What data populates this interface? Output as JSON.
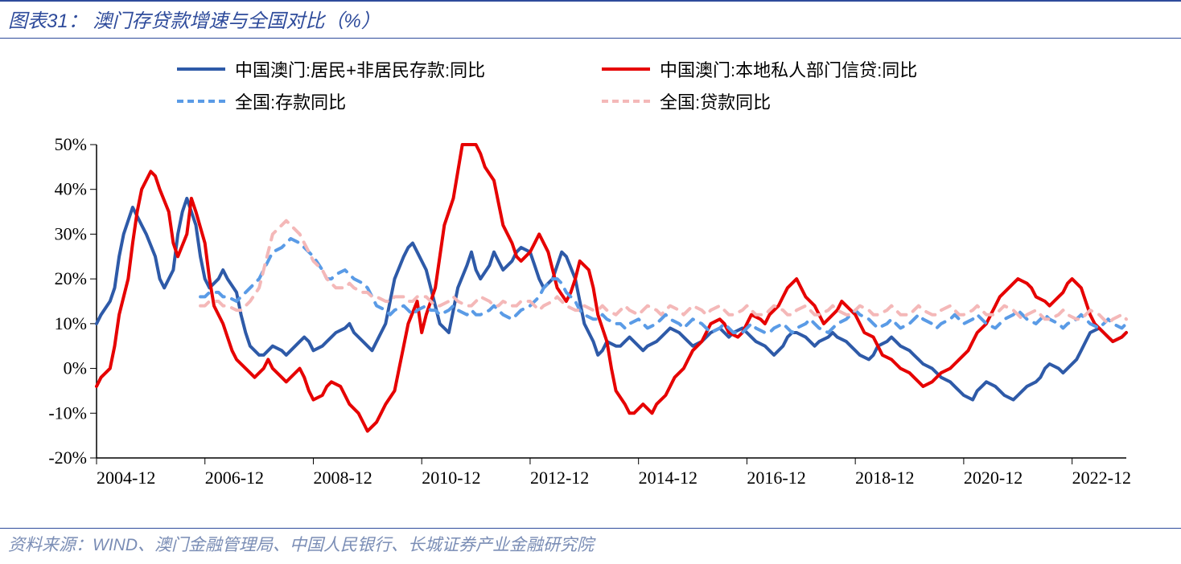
{
  "title": "图表31：  澳门存贷款增速与全国对比（%）",
  "source": "资料来源：WIND、澳门金融管理局、中国人民银行、长城证券产业金融研究院",
  "chart": {
    "type": "line",
    "background_color": "#ffffff",
    "title_color": "#2e4b9b",
    "source_color": "#7a8db5",
    "axis_color": "#000000",
    "ylim": [
      -20,
      50
    ],
    "ytick_step": 10,
    "ytick_format_suffix": "%",
    "x_start_year": 2004,
    "x_start_month": 12,
    "x_end_year": 2023,
    "x_end_month": 12,
    "x_major_step_years": 2,
    "x_tick_labels": [
      "2004-12",
      "2006-12",
      "2008-12",
      "2010-12",
      "2012-12",
      "2014-12",
      "2016-12",
      "2018-12",
      "2020-12",
      "2022-12"
    ],
    "axis_font_size": 22,
    "legend_font_size": 22,
    "line_width_solid": 4,
    "line_width_dashed": 4,
    "dash_pattern": "12 10",
    "series": [
      {
        "name": "中国澳门:居民+非居民存款:同比",
        "color": "#2e5aa8",
        "style": "solid",
        "data": [
          10,
          12,
          15,
          18,
          25,
          30,
          36,
          34,
          32,
          30,
          25,
          20,
          18,
          22,
          30,
          35,
          38,
          32,
          25,
          20,
          18,
          20,
          22,
          20,
          17,
          12,
          8,
          5,
          3,
          3,
          4,
          5,
          4,
          3,
          4,
          6,
          7,
          6,
          4,
          5,
          6,
          7,
          8,
          9,
          10,
          8,
          6,
          5,
          4,
          6,
          10,
          15,
          20,
          25,
          27,
          28,
          26,
          22,
          18,
          14,
          10,
          8,
          13,
          18,
          23,
          26,
          22,
          20,
          23,
          26,
          24,
          22,
          24,
          26,
          27,
          26,
          23,
          20,
          18,
          20,
          23,
          26,
          25,
          20,
          15,
          10,
          6,
          3,
          4,
          6,
          5,
          5,
          6,
          7,
          5,
          4,
          5,
          6,
          7,
          8,
          9,
          8,
          7,
          6,
          5,
          6,
          7,
          8,
          9,
          8,
          7,
          8,
          9,
          8,
          7,
          6,
          5,
          4,
          3,
          5,
          7,
          8,
          8,
          7,
          6,
          5,
          6,
          7,
          8,
          7,
          6,
          5,
          4,
          3,
          2,
          3,
          5,
          6,
          7,
          6,
          5,
          4,
          3,
          2,
          1,
          0,
          -1,
          -2,
          -3,
          -4,
          -5,
          -6,
          -7,
          -5,
          -4,
          -3,
          -4,
          -5,
          -6,
          -7,
          -6,
          -5,
          -4,
          -3,
          -2,
          0,
          1,
          0,
          -1,
          0,
          2,
          4,
          6,
          8,
          9,
          8,
          7,
          6,
          7,
          8
        ]
      },
      {
        "name": "中国澳门:本地私人部门信贷:同比",
        "color": "#e60000",
        "style": "solid",
        "data": [
          -4,
          -2,
          0,
          5,
          12,
          20,
          28,
          35,
          40,
          44,
          43,
          40,
          35,
          28,
          25,
          30,
          38,
          35,
          28,
          20,
          14,
          10,
          7,
          4,
          2,
          0,
          -1,
          -2,
          0,
          2,
          0,
          -2,
          -3,
          -2,
          0,
          -2,
          -5,
          -7,
          -6,
          -4,
          -3,
          -4,
          -6,
          -8,
          -10,
          -12,
          -14,
          -12,
          -10,
          -8,
          -5,
          0,
          5,
          10,
          15,
          8,
          12,
          18,
          25,
          32,
          38,
          44,
          50,
          52,
          50,
          48,
          45,
          42,
          37,
          32,
          28,
          25,
          24,
          26,
          28,
          30,
          26,
          22,
          18,
          15,
          17,
          20,
          24,
          22,
          18,
          12,
          6,
          0,
          -5,
          -8,
          -10,
          -10,
          -8,
          -9,
          -10,
          -8,
          -6,
          -4,
          -2,
          0,
          2,
          4,
          6,
          8,
          10,
          11,
          10,
          8,
          7,
          8,
          10,
          12,
          11,
          10,
          12,
          14,
          16,
          18,
          20,
          18,
          16,
          14,
          12,
          10,
          11,
          13,
          15,
          14,
          12,
          10,
          8,
          7,
          5,
          3,
          2,
          1,
          0,
          -1,
          -2,
          -3,
          -4,
          -3,
          -2,
          -1,
          0,
          1,
          2,
          4,
          6,
          8,
          10,
          12,
          14,
          16,
          18,
          19,
          20,
          19,
          18,
          16,
          15,
          14,
          15,
          17,
          19,
          20,
          18,
          15,
          12,
          10,
          8,
          7,
          6,
          7,
          8
        ]
      },
      {
        "name": "全国:存款同比",
        "color": "#5a9be6",
        "style": "dashed",
        "data": [
          null,
          null,
          null,
          null,
          null,
          null,
          null,
          null,
          null,
          null,
          null,
          null,
          null,
          null,
          null,
          null,
          null,
          null,
          16,
          16,
          17,
          17,
          16,
          16,
          15,
          16,
          17,
          18,
          20,
          22,
          24,
          26,
          27,
          28,
          29,
          28,
          27,
          26,
          25,
          22,
          20,
          20,
          21,
          22,
          21,
          20,
          19,
          18,
          16,
          14,
          13,
          12,
          13,
          14,
          13,
          12,
          13,
          14,
          13,
          13,
          12,
          13,
          14,
          13,
          12,
          13,
          12,
          12,
          13,
          14,
          13,
          12,
          11,
          12,
          13,
          14,
          15,
          16,
          18,
          20,
          20,
          19,
          17,
          15,
          13,
          12,
          11,
          11,
          12,
          11,
          10,
          10,
          9,
          10,
          11,
          10,
          9,
          10,
          11,
          12,
          11,
          10,
          9,
          10,
          11,
          10,
          9,
          8,
          9,
          10,
          9,
          8,
          8,
          9,
          10,
          9,
          8,
          8,
          9,
          10,
          9,
          8,
          9,
          10,
          11,
          10,
          9,
          8,
          9,
          10,
          11,
          12,
          13,
          12,
          11,
          10,
          9,
          10,
          11,
          10,
          9,
          10,
          11,
          12,
          11,
          10,
          9,
          10,
          11,
          12,
          11,
          10,
          11,
          12,
          11,
          10,
          9,
          10,
          11,
          12,
          13,
          12,
          11,
          10,
          11,
          12,
          11,
          10,
          9,
          10,
          11,
          12,
          11,
          10,
          9,
          10,
          11,
          10,
          9,
          10
        ]
      },
      {
        "name": "全国:贷款同比",
        "color": "#f4b8b8",
        "style": "dashed",
        "data": [
          null,
          null,
          null,
          null,
          null,
          null,
          null,
          null,
          null,
          null,
          null,
          null,
          null,
          null,
          null,
          null,
          null,
          null,
          14,
          14,
          15,
          15,
          14,
          14,
          13,
          13,
          14,
          15,
          18,
          22,
          26,
          30,
          32,
          33,
          32,
          30,
          28,
          26,
          24,
          22,
          20,
          19,
          18,
          18,
          19,
          18,
          17,
          17,
          16,
          16,
          15,
          15,
          16,
          16,
          15,
          15,
          16,
          16,
          15,
          14,
          14,
          15,
          16,
          15,
          14,
          14,
          15,
          16,
          15,
          14,
          14,
          15,
          14,
          14,
          15,
          15,
          14,
          13,
          14,
          15,
          16,
          15,
          14,
          13,
          13,
          14,
          13,
          13,
          14,
          13,
          12,
          13,
          14,
          13,
          12,
          13,
          14,
          13,
          12,
          13,
          14,
          13,
          12,
          13,
          14,
          13,
          12,
          13,
          14,
          13,
          12,
          12,
          13,
          14,
          13,
          12,
          12,
          13,
          14,
          13,
          12,
          12,
          13,
          14,
          13,
          12,
          12,
          13,
          14,
          13,
          12,
          12,
          13,
          14,
          13,
          12,
          12,
          13,
          14,
          13,
          12,
          12,
          13,
          14,
          13,
          12,
          12,
          13,
          14,
          13,
          12,
          12,
          13,
          14,
          13,
          12,
          12,
          13,
          14,
          13,
          12,
          11,
          12,
          13,
          12,
          11,
          11,
          12,
          13,
          12,
          11,
          11,
          12,
          13,
          12,
          11,
          10,
          11,
          12,
          11
        ]
      }
    ]
  }
}
